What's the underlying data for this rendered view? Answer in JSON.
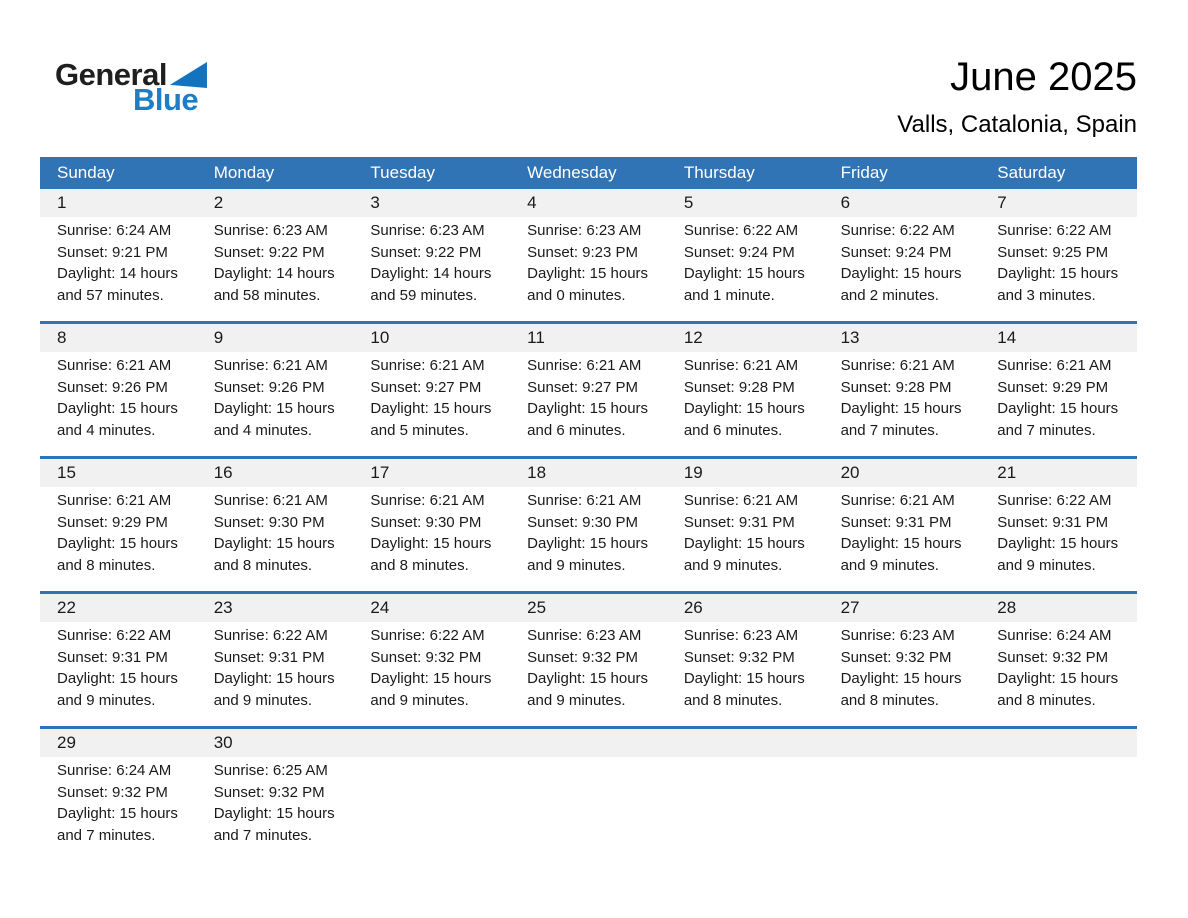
{
  "logo": {
    "part1": "General",
    "part2": "Blue"
  },
  "header": {
    "title": "June 2025",
    "subtitle": "Valls, Catalonia, Spain"
  },
  "colors": {
    "header_blue": "#3074B5",
    "row_border_blue": "#2E74B5",
    "strip_gray": "#F1F1F1",
    "logo_blue": "#1B7EC6",
    "logo_triangle_blue": "#1473BE"
  },
  "calendar": {
    "weekdays": [
      "Sunday",
      "Monday",
      "Tuesday",
      "Wednesday",
      "Thursday",
      "Friday",
      "Saturday"
    ],
    "weeks": [
      [
        {
          "day": "1",
          "sunrise": "Sunrise: 6:24 AM",
          "sunset": "Sunset: 9:21 PM",
          "daylight1": "Daylight: 14 hours",
          "daylight2": "and 57 minutes."
        },
        {
          "day": "2",
          "sunrise": "Sunrise: 6:23 AM",
          "sunset": "Sunset: 9:22 PM",
          "daylight1": "Daylight: 14 hours",
          "daylight2": "and 58 minutes."
        },
        {
          "day": "3",
          "sunrise": "Sunrise: 6:23 AM",
          "sunset": "Sunset: 9:22 PM",
          "daylight1": "Daylight: 14 hours",
          "daylight2": "and 59 minutes."
        },
        {
          "day": "4",
          "sunrise": "Sunrise: 6:23 AM",
          "sunset": "Sunset: 9:23 PM",
          "daylight1": "Daylight: 15 hours",
          "daylight2": "and 0 minutes."
        },
        {
          "day": "5",
          "sunrise": "Sunrise: 6:22 AM",
          "sunset": "Sunset: 9:24 PM",
          "daylight1": "Daylight: 15 hours",
          "daylight2": "and 1 minute."
        },
        {
          "day": "6",
          "sunrise": "Sunrise: 6:22 AM",
          "sunset": "Sunset: 9:24 PM",
          "daylight1": "Daylight: 15 hours",
          "daylight2": "and 2 minutes."
        },
        {
          "day": "7",
          "sunrise": "Sunrise: 6:22 AM",
          "sunset": "Sunset: 9:25 PM",
          "daylight1": "Daylight: 15 hours",
          "daylight2": "and 3 minutes."
        }
      ],
      [
        {
          "day": "8",
          "sunrise": "Sunrise: 6:21 AM",
          "sunset": "Sunset: 9:26 PM",
          "daylight1": "Daylight: 15 hours",
          "daylight2": "and 4 minutes."
        },
        {
          "day": "9",
          "sunrise": "Sunrise: 6:21 AM",
          "sunset": "Sunset: 9:26 PM",
          "daylight1": "Daylight: 15 hours",
          "daylight2": "and 4 minutes."
        },
        {
          "day": "10",
          "sunrise": "Sunrise: 6:21 AM",
          "sunset": "Sunset: 9:27 PM",
          "daylight1": "Daylight: 15 hours",
          "daylight2": "and 5 minutes."
        },
        {
          "day": "11",
          "sunrise": "Sunrise: 6:21 AM",
          "sunset": "Sunset: 9:27 PM",
          "daylight1": "Daylight: 15 hours",
          "daylight2": "and 6 minutes."
        },
        {
          "day": "12",
          "sunrise": "Sunrise: 6:21 AM",
          "sunset": "Sunset: 9:28 PM",
          "daylight1": "Daylight: 15 hours",
          "daylight2": "and 6 minutes."
        },
        {
          "day": "13",
          "sunrise": "Sunrise: 6:21 AM",
          "sunset": "Sunset: 9:28 PM",
          "daylight1": "Daylight: 15 hours",
          "daylight2": "and 7 minutes."
        },
        {
          "day": "14",
          "sunrise": "Sunrise: 6:21 AM",
          "sunset": "Sunset: 9:29 PM",
          "daylight1": "Daylight: 15 hours",
          "daylight2": "and 7 minutes."
        }
      ],
      [
        {
          "day": "15",
          "sunrise": "Sunrise: 6:21 AM",
          "sunset": "Sunset: 9:29 PM",
          "daylight1": "Daylight: 15 hours",
          "daylight2": "and 8 minutes."
        },
        {
          "day": "16",
          "sunrise": "Sunrise: 6:21 AM",
          "sunset": "Sunset: 9:30 PM",
          "daylight1": "Daylight: 15 hours",
          "daylight2": "and 8 minutes."
        },
        {
          "day": "17",
          "sunrise": "Sunrise: 6:21 AM",
          "sunset": "Sunset: 9:30 PM",
          "daylight1": "Daylight: 15 hours",
          "daylight2": "and 8 minutes."
        },
        {
          "day": "18",
          "sunrise": "Sunrise: 6:21 AM",
          "sunset": "Sunset: 9:30 PM",
          "daylight1": "Daylight: 15 hours",
          "daylight2": "and 9 minutes."
        },
        {
          "day": "19",
          "sunrise": "Sunrise: 6:21 AM",
          "sunset": "Sunset: 9:31 PM",
          "daylight1": "Daylight: 15 hours",
          "daylight2": "and 9 minutes."
        },
        {
          "day": "20",
          "sunrise": "Sunrise: 6:21 AM",
          "sunset": "Sunset: 9:31 PM",
          "daylight1": "Daylight: 15 hours",
          "daylight2": "and 9 minutes."
        },
        {
          "day": "21",
          "sunrise": "Sunrise: 6:22 AM",
          "sunset": "Sunset: 9:31 PM",
          "daylight1": "Daylight: 15 hours",
          "daylight2": "and 9 minutes."
        }
      ],
      [
        {
          "day": "22",
          "sunrise": "Sunrise: 6:22 AM",
          "sunset": "Sunset: 9:31 PM",
          "daylight1": "Daylight: 15 hours",
          "daylight2": "and 9 minutes."
        },
        {
          "day": "23",
          "sunrise": "Sunrise: 6:22 AM",
          "sunset": "Sunset: 9:31 PM",
          "daylight1": "Daylight: 15 hours",
          "daylight2": "and 9 minutes."
        },
        {
          "day": "24",
          "sunrise": "Sunrise: 6:22 AM",
          "sunset": "Sunset: 9:32 PM",
          "daylight1": "Daylight: 15 hours",
          "daylight2": "and 9 minutes."
        },
        {
          "day": "25",
          "sunrise": "Sunrise: 6:23 AM",
          "sunset": "Sunset: 9:32 PM",
          "daylight1": "Daylight: 15 hours",
          "daylight2": "and 9 minutes."
        },
        {
          "day": "26",
          "sunrise": "Sunrise: 6:23 AM",
          "sunset": "Sunset: 9:32 PM",
          "daylight1": "Daylight: 15 hours",
          "daylight2": "and 8 minutes."
        },
        {
          "day": "27",
          "sunrise": "Sunrise: 6:23 AM",
          "sunset": "Sunset: 9:32 PM",
          "daylight1": "Daylight: 15 hours",
          "daylight2": "and 8 minutes."
        },
        {
          "day": "28",
          "sunrise": "Sunrise: 6:24 AM",
          "sunset": "Sunset: 9:32 PM",
          "daylight1": "Daylight: 15 hours",
          "daylight2": "and 8 minutes."
        }
      ],
      [
        {
          "day": "29",
          "sunrise": "Sunrise: 6:24 AM",
          "sunset": "Sunset: 9:32 PM",
          "daylight1": "Daylight: 15 hours",
          "daylight2": "and 7 minutes."
        },
        {
          "day": "30",
          "sunrise": "Sunrise: 6:25 AM",
          "sunset": "Sunset: 9:32 PM",
          "daylight1": "Daylight: 15 hours",
          "daylight2": "and 7 minutes."
        },
        null,
        null,
        null,
        null,
        null
      ]
    ]
  }
}
